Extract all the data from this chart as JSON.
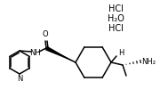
{
  "bg_color": "#ffffff",
  "line_color": "#000000",
  "lw": 1.1,
  "fs": 6.0,
  "hcl1": "HCl",
  "water": "H₂O",
  "hcl2": "HCl"
}
